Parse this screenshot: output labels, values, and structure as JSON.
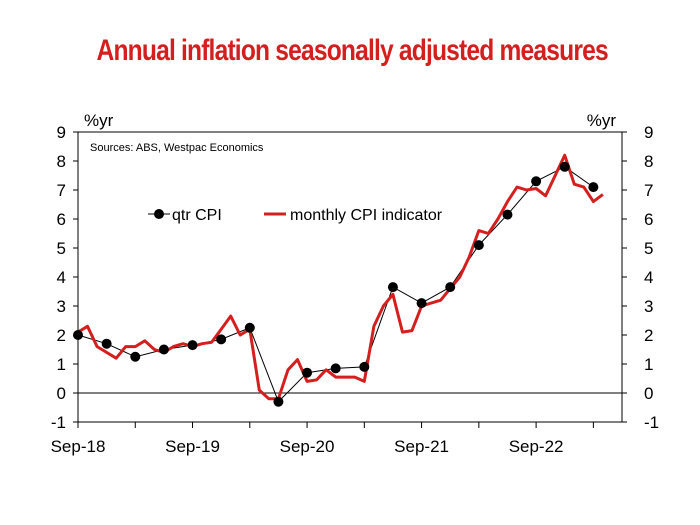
{
  "chart_data": {
    "type": "line",
    "title": "Annual inflation seasonally adjusted measures",
    "source": "Sources: ABS, Westpac Economics",
    "ylabel_left": "%yr",
    "ylabel_right": "%yr",
    "ylim": [
      -1,
      9
    ],
    "yticks": [
      -1,
      0,
      1,
      2,
      3,
      4,
      5,
      6,
      7,
      8,
      9
    ],
    "x_tick_labels": [
      "Sep-18",
      "Sep-19",
      "Sep-20",
      "Sep-21",
      "Sep-22"
    ],
    "x_range_months": [
      0,
      57
    ],
    "grid": false,
    "legend_position": "upper-left",
    "colors": {
      "title": "#d51f1f",
      "monthly": "#d51f1f",
      "quarterly": "#000000"
    },
    "series": [
      {
        "name": "qtr CPI",
        "style": "line-with-markers",
        "x": [
          0,
          3,
          6,
          9,
          12,
          15,
          18,
          21,
          24,
          27,
          30,
          33,
          36,
          39,
          42,
          45,
          48,
          51,
          54
        ],
        "y": [
          2.0,
          1.7,
          1.25,
          1.5,
          1.65,
          1.85,
          2.25,
          -0.3,
          0.7,
          0.85,
          0.9,
          3.65,
          3.1,
          3.65,
          5.1,
          6.15,
          7.3,
          7.8,
          7.1
        ]
      },
      {
        "name": "monthly CPI indicator",
        "style": "line",
        "x": [
          0,
          1,
          2,
          3,
          4,
          5,
          6,
          7,
          8,
          9,
          10,
          11,
          12,
          13,
          14,
          15,
          16,
          17,
          18,
          19,
          20,
          21,
          22,
          23,
          24,
          25,
          26,
          27,
          28,
          29,
          30,
          31,
          32,
          33,
          34,
          35,
          36,
          37,
          38,
          39,
          40,
          41,
          42,
          43,
          44,
          45,
          46,
          47,
          48,
          49,
          50,
          51,
          52,
          53,
          54,
          55
        ],
        "y": [
          2.1,
          2.3,
          1.6,
          1.4,
          1.2,
          1.6,
          1.6,
          1.8,
          1.5,
          1.4,
          1.6,
          1.7,
          1.6,
          1.7,
          1.75,
          2.2,
          2.65,
          2.0,
          2.2,
          0.1,
          -0.2,
          -0.2,
          0.8,
          1.15,
          0.4,
          0.45,
          0.8,
          0.55,
          0.55,
          0.55,
          0.4,
          2.3,
          3.0,
          3.4,
          2.1,
          2.15,
          3.0,
          3.1,
          3.2,
          3.6,
          4.0,
          4.7,
          5.6,
          5.5,
          6.0,
          6.6,
          7.1,
          7.0,
          7.05,
          6.8,
          7.5,
          8.2,
          7.2,
          7.1,
          6.6,
          6.85
        ]
      }
    ]
  }
}
